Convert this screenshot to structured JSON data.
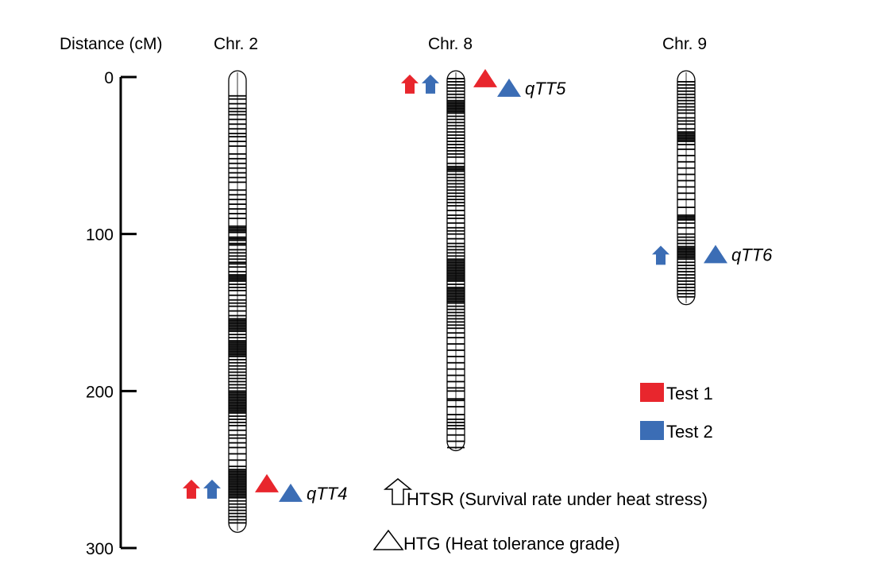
{
  "axis": {
    "title": "Distance (cM)",
    "ticks": [
      0,
      100,
      200,
      300
    ],
    "range": [
      0,
      300
    ]
  },
  "colors": {
    "test1": "#e8262d",
    "test2": "#3b6db5",
    "ink": "#000000"
  },
  "chromosomes": [
    {
      "label": "Chr. 2",
      "length_cM": 290,
      "markers_cM": [
        12,
        14,
        17,
        20,
        22,
        24,
        27,
        30,
        33,
        36,
        38,
        41,
        44,
        49,
        52,
        55,
        58,
        61,
        64,
        67,
        72,
        75,
        78,
        81,
        84,
        87,
        90,
        95,
        96,
        97,
        98,
        99,
        102,
        103,
        104,
        106,
        107,
        110,
        112,
        114,
        116,
        118,
        119,
        121,
        124,
        126,
        127,
        128,
        129,
        130,
        132,
        134,
        136,
        139,
        142,
        144,
        146,
        149,
        152,
        154,
        155,
        156,
        157,
        158,
        159,
        160,
        161,
        162,
        164,
        166,
        168,
        169,
        170,
        171,
        172,
        173,
        174,
        175,
        176,
        177,
        178,
        180,
        182,
        184,
        186,
        188,
        190,
        192,
        194,
        196,
        198,
        200,
        201,
        202,
        203,
        204,
        205,
        206,
        207,
        208,
        209,
        210,
        211,
        212,
        213,
        214,
        216,
        218,
        220,
        222,
        225,
        228,
        230,
        233,
        236,
        240,
        244,
        248,
        250,
        251,
        252,
        253,
        254,
        255,
        256,
        257,
        258,
        259,
        260,
        261,
        262,
        263,
        264,
        265,
        266,
        267,
        268,
        270,
        272,
        274,
        276,
        278,
        280,
        282,
        284
      ]
    },
    {
      "label": "Chr. 8",
      "length_cM": 238,
      "markers_cM": [
        1,
        3,
        5,
        7,
        9,
        11,
        13,
        15,
        16,
        17,
        18,
        19,
        20,
        21,
        22,
        23,
        25,
        27,
        29,
        31,
        33,
        35,
        37,
        39,
        41,
        43,
        45,
        47,
        49,
        51,
        55,
        57,
        58,
        59,
        60,
        62,
        64,
        66,
        68,
        70,
        72,
        74,
        76,
        78,
        80,
        82,
        85,
        88,
        90,
        93,
        96,
        98,
        100,
        103,
        106,
        108,
        110,
        112,
        114,
        116,
        117,
        118,
        119,
        120,
        121,
        122,
        123,
        124,
        125,
        126,
        127,
        128,
        129,
        130,
        132,
        134,
        135,
        136,
        137,
        138,
        139,
        140,
        141,
        142,
        143,
        144,
        146,
        148,
        150,
        152,
        154,
        156,
        158,
        160,
        163,
        166,
        170,
        174,
        178,
        182,
        186,
        190,
        194,
        198,
        200,
        205,
        206,
        210,
        215,
        218,
        220,
        222,
        224,
        228,
        232,
        236
      ]
    },
    {
      "label": "Chr. 9",
      "length_cM": 145,
      "markers_cM": [
        3,
        5,
        7,
        9,
        11,
        13,
        15,
        17,
        19,
        21,
        23,
        26,
        28,
        30,
        33,
        35,
        36,
        37,
        38,
        39,
        40,
        41,
        43,
        46,
        50,
        54,
        58,
        62,
        66,
        70,
        74,
        78,
        83,
        88,
        89,
        90,
        91,
        93,
        96,
        100,
        102,
        104,
        106,
        108,
        109,
        110,
        111,
        112,
        113,
        114,
        115,
        116,
        118,
        120,
        122,
        124,
        126,
        128,
        130,
        132,
        134,
        136,
        138,
        140
      ]
    }
  ],
  "qtls": [
    {
      "name": "qTT4",
      "chromosome": "Chr. 2",
      "position_cM": 262,
      "htsr_tests": [
        "Test 1",
        "Test 2"
      ],
      "htg_tests": [
        "Test 1",
        "Test 2"
      ]
    },
    {
      "name": "qTT5",
      "chromosome": "Chr. 8",
      "position_cM": 4,
      "htsr_tests": [
        "Test 1",
        "Test 2"
      ],
      "htg_tests": [
        "Test 1",
        "Test 2"
      ]
    },
    {
      "name": "qTT6",
      "chromosome": "Chr. 9",
      "position_cM": 113,
      "htsr_tests": [
        "Test 2"
      ],
      "htg_tests": [
        "Test 2"
      ]
    }
  ],
  "legend": {
    "test1": "Test 1",
    "test2": "Test 2",
    "htsr": "HTSR (Survival rate under heat stress)",
    "htg": "HTG (Heat tolerance grade)"
  }
}
